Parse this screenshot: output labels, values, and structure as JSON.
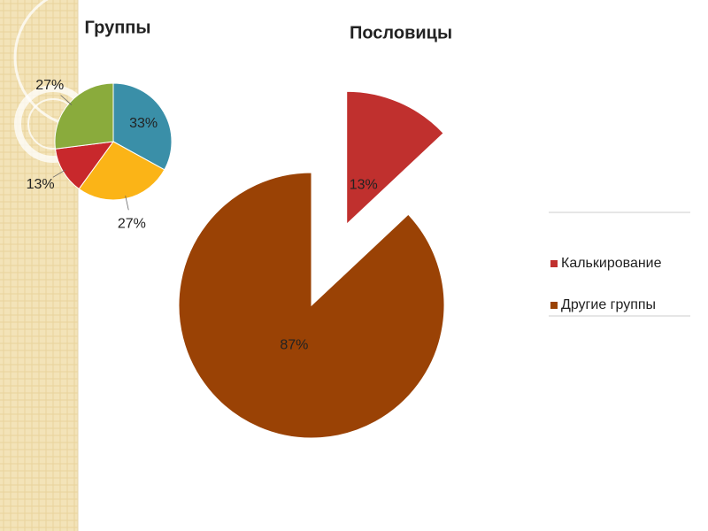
{
  "chart_data": [
    {
      "type": "pie",
      "title": "Группы",
      "values": [
        33,
        27,
        13,
        27
      ],
      "value_labels": [
        "33%",
        "27%",
        "13%",
        "27%"
      ],
      "colors": [
        "#3a8fa8",
        "#fbb417",
        "#c8282c",
        "#8aab3c"
      ]
    },
    {
      "type": "pie",
      "title": "Пословицы",
      "categories": [
        "Калькирование",
        "Другие группы"
      ],
      "values": [
        13,
        87
      ],
      "value_labels": [
        "13%",
        "87%"
      ],
      "colors": [
        "#c0302e",
        "#9a4205"
      ],
      "legend": "right"
    }
  ]
}
